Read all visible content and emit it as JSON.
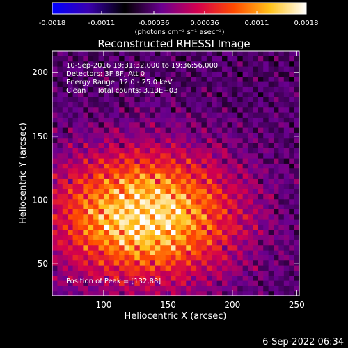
{
  "colorbar": {
    "tick_labels": [
      "-0.0018",
      "-0.0011",
      "-0.00036",
      "0.00036",
      "0.0011",
      "0.0018"
    ],
    "unit_label": "(photons cm⁻² s⁻¹ asec⁻²)",
    "range": [
      -0.0018,
      0.0018
    ],
    "colormap_stops": [
      "#0000ff",
      "#3a00b0",
      "#000000",
      "#6a0090",
      "#d2004e",
      "#ff4a00",
      "#ffc21a",
      "#ffffff"
    ]
  },
  "annotations": {
    "time_range": "10-Sep-2016 19:31:32.000 to 19:36:56.000",
    "detectors": "Detectors: 3F 8F, Att 0",
    "energy_range": "Energy Range: 12.0 - 25.0 keV",
    "clean": "Clean     Total counts: 3.13E+03",
    "peak_position": "Position of Peak = [132,88]"
  },
  "footer_date": "6-Sep-2022 06:34",
  "chart_data": {
    "type": "heatmap",
    "title": "Reconstructed RHESSI Image",
    "xlabel": "Heliocentric X (arcsec)",
    "ylabel": "Heliocentric Y (arcsec)",
    "xlim": [
      60,
      252
    ],
    "ylim": [
      25,
      217
    ],
    "x_ticks": [
      100,
      150,
      200,
      250
    ],
    "y_ticks": [
      50,
      100,
      150,
      200
    ],
    "x_tick_labels": [
      "100",
      "150",
      "200",
      "250"
    ],
    "y_tick_labels": [
      "50",
      "100",
      "150",
      "200"
    ],
    "grid": false,
    "source": {
      "peak_x": 132,
      "peak_y": 88,
      "sigma_x": 48,
      "sigma_y": 34,
      "peak_value": 0.0018
    },
    "background_value": -0.0004,
    "ringing_amplitude": 0.00035
  }
}
